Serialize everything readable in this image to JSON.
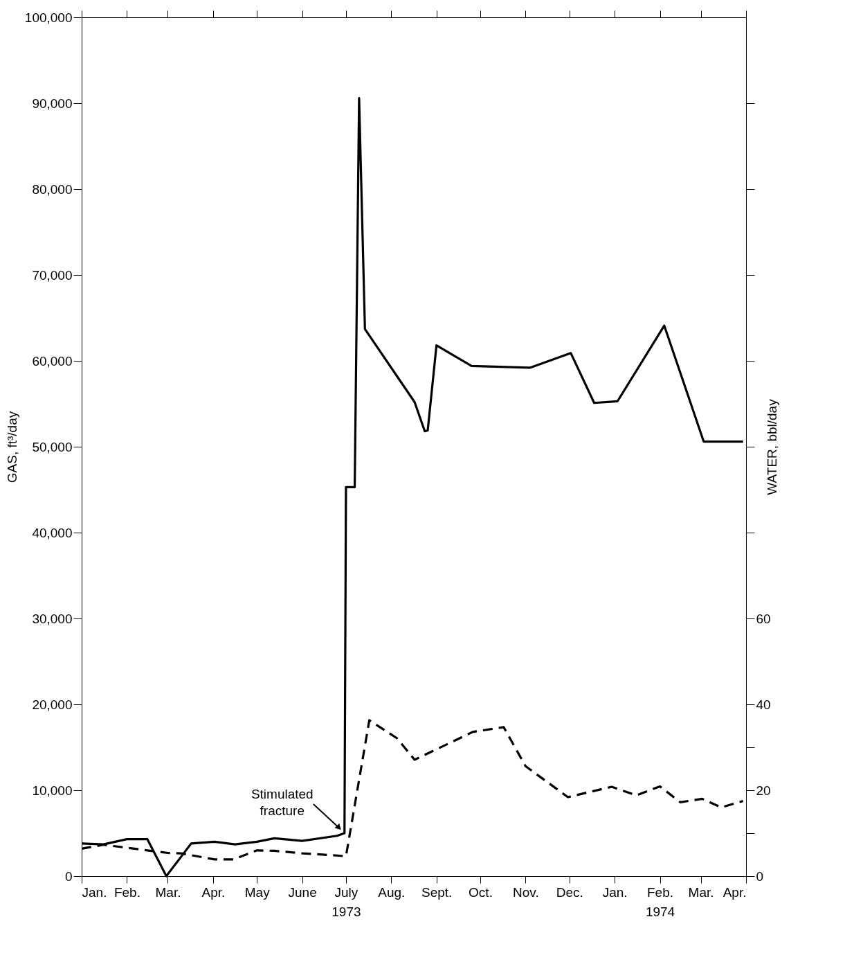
{
  "chart_data": {
    "type": "line",
    "ylabel": "GAS, ft³/day",
    "y2label": "WATER, bbl/day",
    "grid": false,
    "marker": "none",
    "xlim": [
      "1973-01",
      "1974-04"
    ],
    "xticks": [
      {
        "value": "1973-01",
        "label": "Jan."
      },
      {
        "value": "1973-02",
        "label": "Feb."
      },
      {
        "value": "1973-03",
        "label": "Mar."
      },
      {
        "value": "1973-04",
        "label": "Apr."
      },
      {
        "value": "1973-05",
        "label": "May"
      },
      {
        "value": "1973-06",
        "label": "June"
      },
      {
        "value": "1973-07",
        "label": "July\n1973"
      },
      {
        "value": "1973-08",
        "label": "Aug."
      },
      {
        "value": "1973-09",
        "label": "Sept."
      },
      {
        "value": "1973-10",
        "label": "Oct."
      },
      {
        "value": "1973-11",
        "label": "Nov."
      },
      {
        "value": "1973-12",
        "label": "Dec."
      },
      {
        "value": "1974-01",
        "label": "Jan."
      },
      {
        "value": "1974-02",
        "label": "Feb.\n1974"
      },
      {
        "value": "1974-03",
        "label": "Mar."
      },
      {
        "value": "1974-04",
        "label": "Apr."
      }
    ],
    "ylim": [
      0,
      100000
    ],
    "yticks": [
      0,
      {
        "value": 10000,
        "label": "10,000"
      },
      {
        "value": 20000,
        "label": "20,000"
      },
      {
        "value": 30000,
        "label": "30,000"
      },
      {
        "value": 40000,
        "label": "40,000"
      },
      {
        "value": 50000,
        "label": "50,000"
      },
      {
        "value": 60000,
        "label": "60,000"
      },
      {
        "value": 70000,
        "label": "70,000"
      },
      {
        "value": 80000,
        "label": "80,000"
      },
      {
        "value": 90000,
        "label": "90,000"
      },
      {
        "value": 100000,
        "label": "100,000"
      }
    ],
    "y2lim": [
      0,
      200
    ],
    "y2ticks": [
      0,
      {
        "value": 10,
        "label": null
      },
      20,
      {
        "value": 30,
        "label": null
      },
      40,
      60,
      {
        "value": 80,
        "label": null
      },
      {
        "value": 100,
        "label": null
      },
      {
        "value": 120,
        "label": null
      },
      {
        "value": 140,
        "label": null
      },
      {
        "value": 160,
        "label": null
      },
      {
        "value": 180,
        "label": null
      }
    ],
    "series": [
      {
        "color": "#000000",
        "line_style": "solid",
        "x": [
          "1973-01-01",
          "1973-01-16",
          "1973-02-01",
          "1973-02-15",
          "1973-02-28",
          "1973-03-17",
          "1973-04-02",
          "1973-04-16",
          "1973-05-01",
          "1973-05-13",
          "1973-06-01",
          "1973-06-25",
          "1973-06-30",
          "1973-07-01",
          "1973-07-07",
          "1973-07-10",
          "1973-07-14",
          "1973-08-17",
          "1973-08-24",
          "1973-08-26",
          "1973-09-01",
          "1973-09-25",
          "1973-11-04",
          "1973-12-02",
          "1973-12-18",
          "1974-01-03",
          "1974-02-04",
          "1974-03-03",
          "1974-03-30"
        ],
        "values": [
          3800,
          3700,
          4300,
          4300,
          0,
          3800,
          4000,
          3700,
          4000,
          4400,
          4100,
          4700,
          5000,
          45300,
          45300,
          90600,
          63700,
          55200,
          51800,
          51900,
          61800,
          59400,
          59200,
          60900,
          55100,
          55300,
          64100,
          50600,
          50600
        ]
      },
      {
        "color": "#000000",
        "line_style": "dashed",
        "axis": "y2",
        "x": [
          "1973-01-01",
          "1973-01-16",
          "1973-02-15",
          "1973-03-01",
          "1973-03-10",
          "1973-04-02",
          "1973-04-15",
          "1973-05-01",
          "1973-05-13",
          "1973-06-01",
          "1973-06-25",
          "1973-07-01",
          "1973-07-17",
          "1973-08-05",
          "1973-08-17",
          "1973-09-26",
          "1973-10-17",
          "1973-11-01",
          "1973-11-30",
          "1973-12-30",
          "1974-01-16",
          "1974-02-01",
          "1974-02-15",
          "1974-03-02",
          "1974-03-15",
          "1974-03-30"
        ],
        "values": [
          6.4,
          7.3,
          6.0,
          5.4,
          5.3,
          3.9,
          3.9,
          6.0,
          5.9,
          5.3,
          4.8,
          4.6,
          36.3,
          32.1,
          27.1,
          33.6,
          34.7,
          25.6,
          18.4,
          20.8,
          18.8,
          20.9,
          17.2,
          18.0,
          16.0,
          17.5
        ]
      }
    ],
    "annotations": [
      {
        "text": "Stimulated fracture",
        "x": "1973-06-30",
        "y": 5000
      }
    ]
  }
}
